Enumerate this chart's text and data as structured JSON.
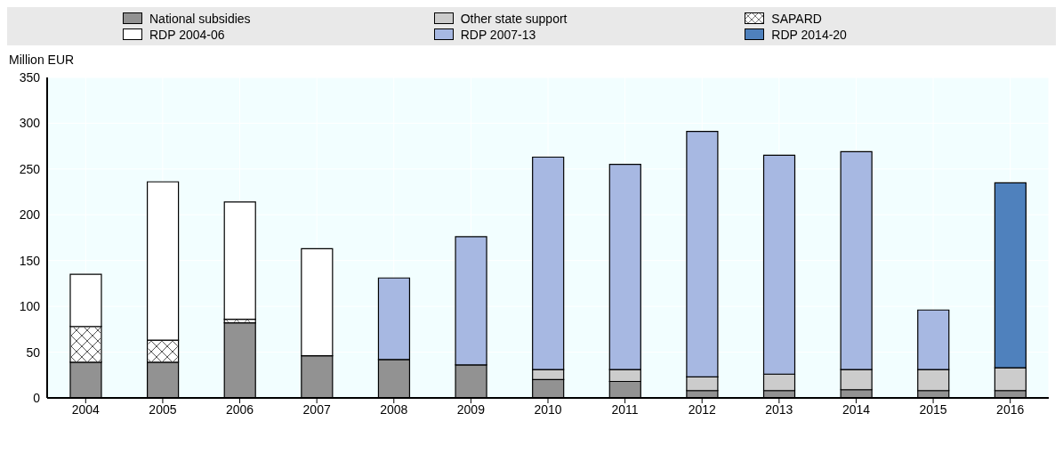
{
  "chart_data": {
    "type": "bar",
    "stacked": true,
    "ylabel": "Million EUR",
    "categories": [
      "2004",
      "2005",
      "2006",
      "2007",
      "2008",
      "2009",
      "2010",
      "2011",
      "2012",
      "2013",
      "2014",
      "2015",
      "2016"
    ],
    "series": [
      {
        "name": "National subsidies",
        "color": "#929292",
        "values": [
          39,
          39,
          82,
          46,
          42,
          36,
          20,
          18,
          8,
          8,
          9,
          8,
          8
        ]
      },
      {
        "name": "Other state support",
        "color": "#cccccc",
        "values": [
          null,
          null,
          null,
          null,
          null,
          null,
          11,
          13,
          15,
          18,
          22,
          23,
          25
        ]
      },
      {
        "name": "SAPARD",
        "color": "#ffffff",
        "values": [
          39,
          24,
          4,
          null,
          null,
          null,
          null,
          null,
          null,
          null,
          null,
          null,
          null
        ]
      },
      {
        "name": "RDP 2004-06",
        "color": "#ffffff",
        "values": [
          57,
          173,
          128,
          117,
          null,
          null,
          null,
          null,
          null,
          null,
          null,
          null,
          null
        ]
      },
      {
        "name": "RDP 2007-13",
        "color": "#a7b8e2",
        "values": [
          null,
          null,
          null,
          null,
          89,
          140,
          232,
          224,
          268,
          239,
          238,
          65,
          null
        ]
      },
      {
        "name": "RDP 2014-20",
        "color": "#4f81bd",
        "values": [
          null,
          null,
          null,
          null,
          null,
          null,
          null,
          null,
          null,
          null,
          null,
          null,
          202
        ]
      }
    ],
    "ylim": [
      0,
      350
    ],
    "yticks": [
      0,
      50,
      100,
      150,
      200,
      250,
      300,
      350
    ],
    "grid": true,
    "legend": "top"
  }
}
